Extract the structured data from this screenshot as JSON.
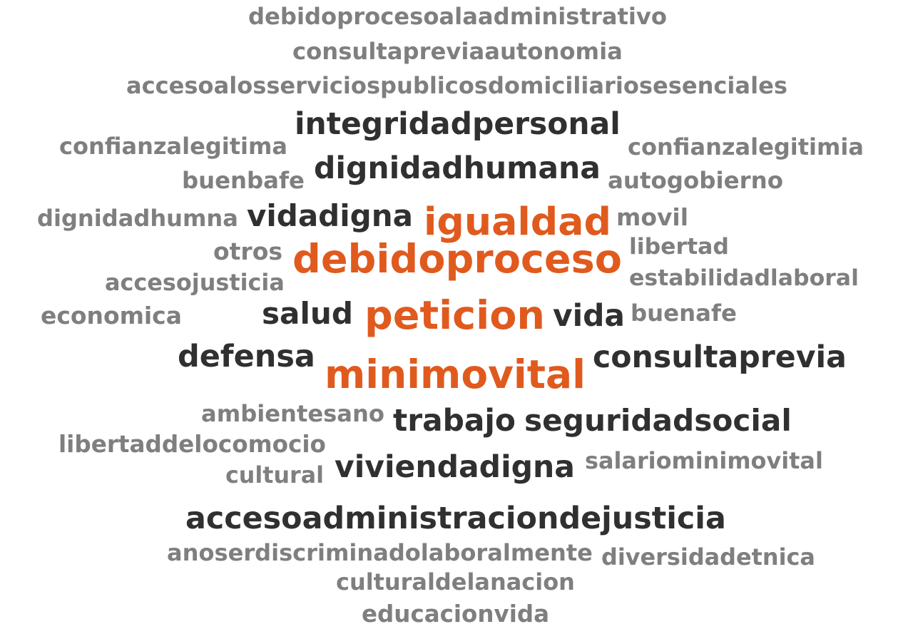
{
  "words": {
    "debidoprocesoalaadministrativo": "debidoprocesoalaadministrativo",
    "consultapreviaautonomia": "consultapreviaautonomia",
    "accesoalosservicios": "accesoalosserviciospublicosdomiciliariosesenciales",
    "integridadpersonal": "integridadpersonal",
    "confianzalegitima": "confianzalegitima",
    "confianzalegitimia": "confianzalegitimia",
    "dignidadhumana": "dignidadhumana",
    "buenbafe": "buenbafe",
    "autogobierno": "autogobierno",
    "dignidadhumna": "dignidadhumna",
    "vidadigna": "vidadigna",
    "igualdad": "igualdad",
    "movil": "movil",
    "otros": "otros",
    "debidoproceso": "debidoproceso",
    "libertad": "libertad",
    "accesojusticia": "accesojusticia",
    "estabilidadlaboral": "estabilidadlaboral",
    "economica": "economica",
    "salud": "salud",
    "peticion": "peticion",
    "vida": "vida",
    "buenafe": "buenafe",
    "defensa": "defensa",
    "minimovital": "minimovital",
    "consultaprevia": "consultaprevia",
    "ambientesano": "ambientesano",
    "trabajo": "trabajo",
    "seguridadsocial": "seguridadsocial",
    "libertaddelocomocio": "libertaddelocomocio",
    "viviendadigna": "viviendadigna",
    "cultural": "cultural",
    "salariominimovital": "salariominimovital",
    "accesoadministracion": "accesoadministraciondejusticia",
    "anoserdiscriminado": "anoserdiscriminadolaboralmente",
    "diversidadetnica": "diversidadetnica",
    "culturaldelanacion": "culturaldelanacion",
    "educacionvida": "educacionvida"
  },
  "colors": {
    "light": "#7f7f7f",
    "dark": "#303030",
    "accent": "#e05a1e"
  }
}
